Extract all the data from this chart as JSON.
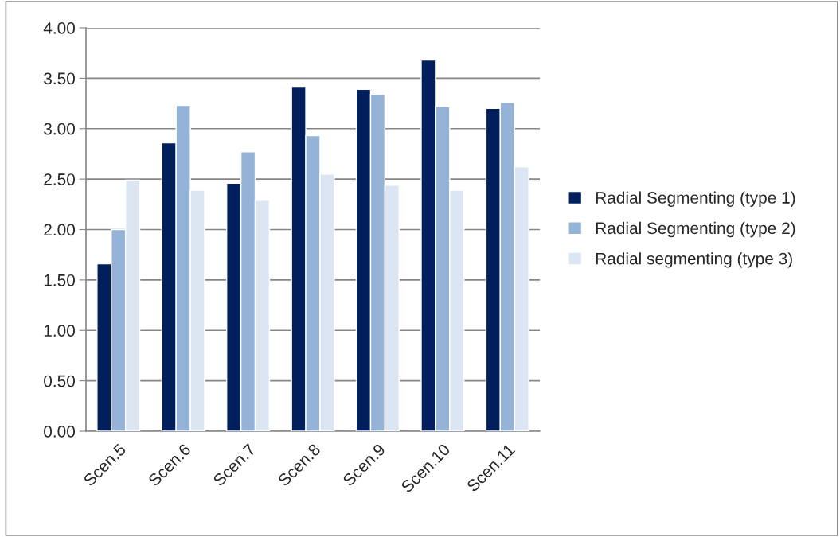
{
  "chart_data": {
    "type": "bar",
    "categories": [
      "Scen.5",
      "Scen.6",
      "Scen.7",
      "Scen.8",
      "Scen.9",
      "Scen.10",
      "Scen.11"
    ],
    "series": [
      {
        "name": "Radial Segmenting (type 1)",
        "color": "#001f5c",
        "values": [
          1.66,
          2.86,
          2.46,
          3.42,
          3.39,
          3.68,
          3.2
        ]
      },
      {
        "name": "Radial Segmenting (type 2)",
        "color": "#95b3d7",
        "values": [
          2.0,
          3.23,
          2.77,
          2.93,
          3.34,
          3.22,
          3.26
        ]
      },
      {
        "name": "Radial segmenting (type 3)",
        "color": "#dce6f2",
        "values": [
          2.49,
          2.39,
          2.29,
          2.55,
          2.44,
          2.39,
          2.62
        ]
      }
    ],
    "ylim": [
      0,
      4
    ],
    "yticks": [
      {
        "value": 0,
        "label": "0.00"
      },
      {
        "value": 0.5,
        "label": "0.50"
      },
      {
        "value": 1,
        "label": "1.00"
      },
      {
        "value": 1.5,
        "label": "1.50"
      },
      {
        "value": 2,
        "label": "2.00"
      },
      {
        "value": 2.5,
        "label": "2.50"
      },
      {
        "value": 3,
        "label": "3.00"
      },
      {
        "value": 3.5,
        "label": "3.50"
      },
      {
        "value": 4,
        "label": "4.00"
      }
    ],
    "grid": "y",
    "legend": "right"
  }
}
